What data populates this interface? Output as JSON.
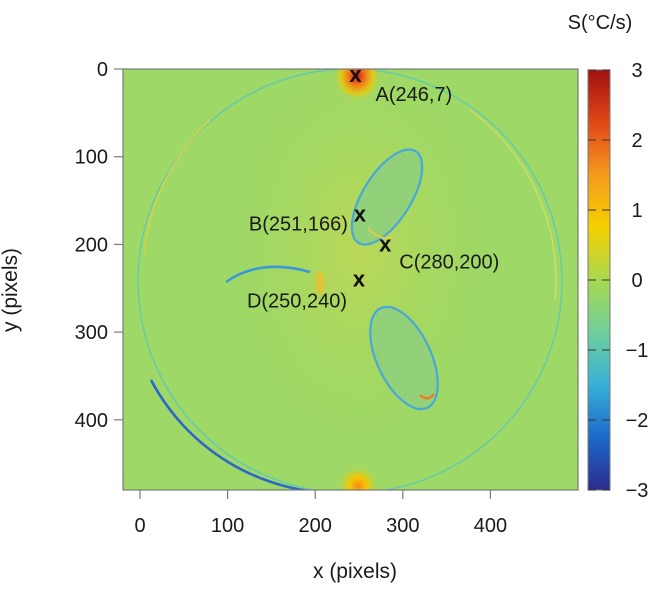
{
  "chart_data": {
    "type": "heatmap",
    "title": "",
    "xlabel": "x (pixels)",
    "ylabel": "y (pixels)",
    "xlim": [
      0,
      500
    ],
    "ylim": [
      0,
      480
    ],
    "y_inverted": true,
    "x_ticks": [
      "0",
      "100",
      "200",
      "300",
      "400"
    ],
    "y_ticks": [
      "0",
      "100",
      "200",
      "300",
      "400"
    ],
    "colorbar": {
      "label": "S(°C/s)",
      "range": [
        -3,
        3
      ],
      "ticks": [
        "3",
        "2",
        "1",
        "0",
        "−1",
        "−2",
        "−3"
      ],
      "colors": [
        "#2c2c8c",
        "#1c68c8",
        "#38b0d8",
        "#6fcf9a",
        "#a8d850",
        "#f5d000",
        "#f59a1c",
        "#e04818",
        "#a01010"
      ]
    },
    "background_value": 0,
    "features": [
      {
        "name": "outer ring",
        "center": [
          250,
          240
        ],
        "radius": 235,
        "value": -1
      },
      {
        "name": "upper ellipse",
        "center": [
          315,
          125
        ],
        "value": -1
      },
      {
        "name": "lower ellipse",
        "center": [
          320,
          320
        ],
        "value": -1
      },
      {
        "name": "left arc",
        "center": [
          170,
          285
        ],
        "value": -1
      },
      {
        "name": "top hot spot",
        "center": [
          255,
          5
        ],
        "value": 3
      },
      {
        "name": "bottom hot spot",
        "center": [
          255,
          475
        ],
        "value": 1.5
      }
    ],
    "points": [
      {
        "marker": "x",
        "label": "A(246,7)",
        "x": 246,
        "y": 7
      },
      {
        "marker": "x",
        "label": "B(251,166)",
        "x": 251,
        "y": 166
      },
      {
        "marker": "x",
        "label": "C(280,200)",
        "x": 280,
        "y": 200
      },
      {
        "marker": "x",
        "label": "D(250,240)",
        "x": 250,
        "y": 240
      }
    ]
  }
}
